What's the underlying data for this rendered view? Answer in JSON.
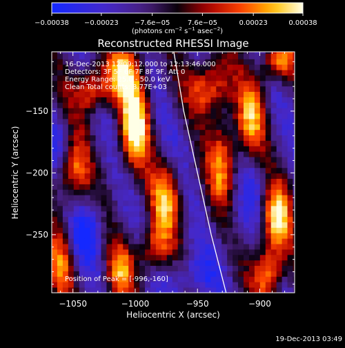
{
  "chart_data": {
    "type": "heatmap",
    "title": "Reconstructed RHESSI Image",
    "xlabel": "Heliocentric X (arcsec)",
    "ylabel": "Heliocentric Y (arcsec)",
    "xlim": [
      -1067,
      -872
    ],
    "ylim": [
      -297,
      -102
    ],
    "xticks": [
      -1050,
      -1000,
      -950,
      -900
    ],
    "xtick_labels": [
      "−1050",
      "−1000",
      "−950",
      "−900"
    ],
    "yticks": [
      -150,
      -200,
      -250
    ],
    "ytick_labels": [
      "−150",
      "−200",
      "−250"
    ],
    "colorbar": {
      "ticks": [
        -0.00038,
        -0.00023,
        -7.6e-05,
        7.6e-05,
        0.00023,
        0.00038
      ],
      "tick_labels": [
        "−0.00038",
        "−0.00023",
        "−7.6e−05",
        "7.6e−05",
        "0.00023",
        "0.00038"
      ],
      "units_prefix": "(photons cm",
      "units_exp1": "−2",
      "units_mid": " s",
      "units_exp2": "−1",
      "units_mid2": " asec",
      "units_exp3": "−2",
      "units_suffix": ")",
      "range": [
        -0.00038,
        0.00038
      ]
    },
    "annotations": [
      "16-Dec-2013 12:09:12.000 to 12:13:46.000",
      "Detectors: 3F 5F 6F 7F 8F 9F, Att 0",
      "Energy Range: 25.0 - 50.0 keV",
      "Clean     Total counts: 8.77E+03"
    ],
    "peak_label": "Position of Peak = [-996,-160]",
    "peak_position": [
      -996,
      -160
    ],
    "limb_line": [
      [
        -969,
        -102
      ],
      [
        -961,
        -150
      ],
      [
        -950,
        -200
      ],
      [
        -939,
        -250
      ],
      [
        -927,
        -297
      ]
    ],
    "hot_spots": [
      {
        "x": -1000,
        "y": -162,
        "value": 0.00038,
        "sx": 8,
        "sy": 24
      },
      {
        "x": -1008,
        "y": -118,
        "value": 0.00028,
        "sx": 9,
        "sy": 16
      },
      {
        "x": -1035,
        "y": -132,
        "value": 0.00024,
        "sx": 10,
        "sy": 14
      },
      {
        "x": -1050,
        "y": -200,
        "value": 0.0002,
        "sx": 9,
        "sy": 20
      },
      {
        "x": -1060,
        "y": -275,
        "value": 0.00018,
        "sx": 7,
        "sy": 22
      },
      {
        "x": -1012,
        "y": -280,
        "value": 0.0002,
        "sx": 8,
        "sy": 18
      },
      {
        "x": -975,
        "y": -220,
        "value": 0.00024,
        "sx": 9,
        "sy": 22
      },
      {
        "x": -985,
        "y": -262,
        "value": 0.00019,
        "sx": 8,
        "sy": 14
      },
      {
        "x": -940,
        "y": -130,
        "value": 0.00026,
        "sx": 11,
        "sy": 16
      },
      {
        "x": -930,
        "y": -190,
        "value": 0.00022,
        "sx": 8,
        "sy": 26
      },
      {
        "x": -907,
        "y": -155,
        "value": 0.00022,
        "sx": 8,
        "sy": 22
      },
      {
        "x": -885,
        "y": -108,
        "value": 0.00026,
        "sx": 9,
        "sy": 12
      },
      {
        "x": -887,
        "y": -238,
        "value": 0.00034,
        "sx": 8,
        "sy": 20
      },
      {
        "x": -893,
        "y": -282,
        "value": 0.00028,
        "sx": 8,
        "sy": 14
      },
      {
        "x": -1040,
        "y": -248,
        "value": -0.00034,
        "sx": 10,
        "sy": 18
      },
      {
        "x": -1062,
        "y": -175,
        "value": -0.00025,
        "sx": 7,
        "sy": 14
      },
      {
        "x": -955,
        "y": -285,
        "value": -0.0003,
        "sx": 14,
        "sy": 14
      },
      {
        "x": -962,
        "y": -180,
        "value": -0.00018,
        "sx": 10,
        "sy": 18
      },
      {
        "x": -920,
        "y": -240,
        "value": -0.0002,
        "sx": 9,
        "sy": 14
      },
      {
        "x": -905,
        "y": -210,
        "value": -0.00022,
        "sx": 8,
        "sy": 16
      }
    ],
    "stripe_angle_deg": 18,
    "stripe_period_arcsec": 46,
    "background_level": -0.00012
  },
  "footer": {
    "timestamp": "19-Dec-2013 03:49"
  }
}
